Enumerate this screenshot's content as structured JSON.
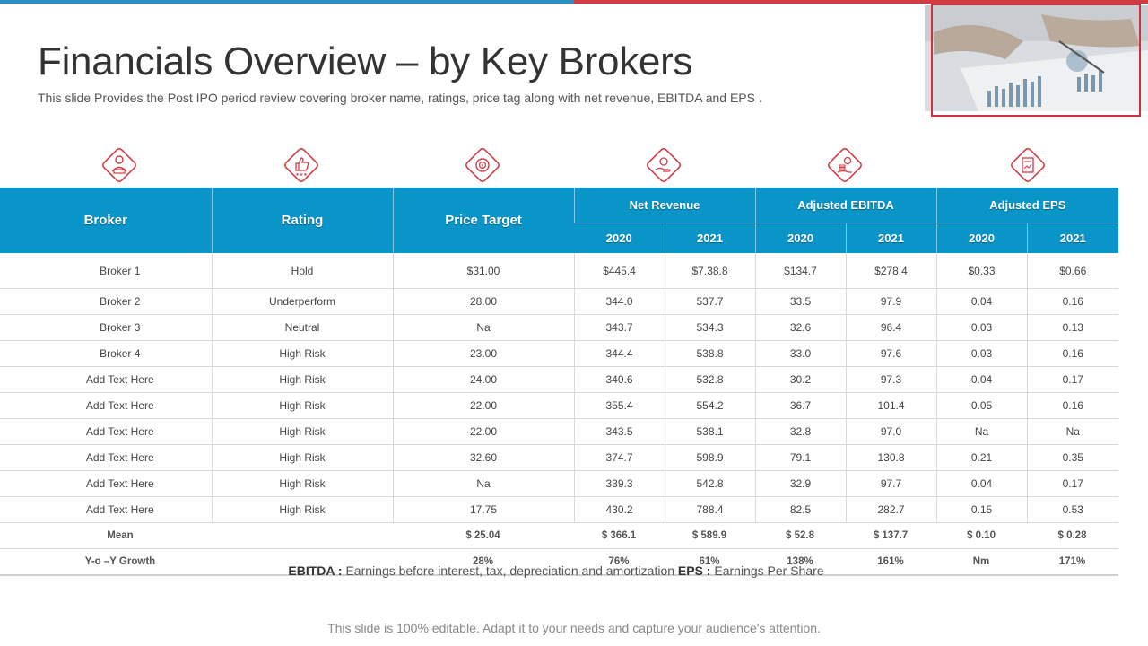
{
  "slide": {
    "title": "Financials Overview – by Key Brokers",
    "subtitle": "This slide Provides the Post IPO period review covering broker name, ratings, price tag along with net revenue, EBITDA and EPS .",
    "footer": "This slide is 100% editable. Adapt it to your needs and capture your audience's attention.",
    "accent_blue": "#0a95c9",
    "accent_red": "#d23a44"
  },
  "icons": [
    "broker-icon",
    "thumbs-up-rating-icon",
    "price-target-icon",
    "revenue-hand-icon",
    "ebitda-coins-icon",
    "eps-document-icon"
  ],
  "table": {
    "headers": {
      "broker": "Broker",
      "rating": "Rating",
      "price_target": "Price Target",
      "net_revenue": "Net Revenue",
      "adjusted_ebitda": "Adjusted EBITDA",
      "adjusted_eps": "Adjusted EPS",
      "years": [
        "2020",
        "2021",
        "2020",
        "2021",
        "2020",
        "2021"
      ]
    },
    "rows": [
      [
        "Broker 1",
        "Hold",
        "$31.00",
        "$445.4",
        "$7.38.8",
        "$134.7",
        "$278.4",
        "$0.33",
        "$0.66"
      ],
      [
        "Broker 2",
        "Underperform",
        "28.00",
        "344.0",
        "537.7",
        "33.5",
        "97.9",
        "0.04",
        "0.16"
      ],
      [
        "Broker 3",
        "Neutral",
        "Na",
        "343.7",
        "534.3",
        "32.6",
        "96.4",
        "0.03",
        "0.13"
      ],
      [
        "Broker 4",
        "High Risk",
        "23.00",
        "344.4",
        "538.8",
        "33.0",
        "97.6",
        "0.03",
        "0.16"
      ],
      [
        "Add Text Here",
        "High Risk",
        "24.00",
        "340.6",
        "532.8",
        "30.2",
        "97.3",
        "0.04",
        "0.17"
      ],
      [
        "Add Text Here",
        "High Risk",
        "22.00",
        "355.4",
        "554.2",
        "36.7",
        "101.4",
        "0.05",
        "0.16"
      ],
      [
        "Add Text Here",
        "High Risk",
        "22.00",
        "343.5",
        "538.1",
        "32.8",
        "97.0",
        "Na",
        "Na"
      ],
      [
        "Add Text Here",
        "High Risk",
        "32.60",
        "374.7",
        "598.9",
        "79.1",
        "130.8",
        "0.21",
        "0.35"
      ],
      [
        "Add Text Here",
        "High Risk",
        "Na",
        "339.3",
        "542.8",
        "32.9",
        "97.7",
        "0.04",
        "0.17"
      ],
      [
        "Add Text Here",
        "High Risk",
        "17.75",
        "430.2",
        "788.4",
        "82.5",
        "282.7",
        "0.15",
        "0.53"
      ]
    ],
    "summary": [
      [
        "Mean",
        "",
        "$ 25.04",
        "$ 366.1",
        "$ 589.9",
        "$ 52.8",
        "$ 137.7",
        "$ 0.10",
        "$ 0.28"
      ],
      [
        "Y-o –Y Growth",
        "",
        "28%",
        "76%",
        "61%",
        "138%",
        "161%",
        "Nm",
        "171%"
      ]
    ]
  },
  "legend": {
    "ebitda_term": "EBITDA :",
    "ebitda_def": "Earnings before interest, tax, depreciation and amortization",
    "eps_term": "EPS :",
    "eps_def": "Earnings Per Share"
  }
}
